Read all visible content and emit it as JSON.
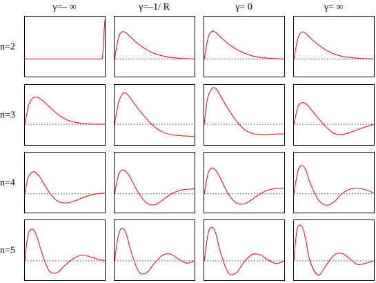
{
  "chart_data": {
    "type": "line",
    "columns": [
      "γ=– ∞",
      "γ=–1/ R",
      "γ= 0",
      "γ= ∞"
    ],
    "rows": [
      "n=2",
      "n=3",
      "n=4",
      "n=5"
    ],
    "grid": false,
    "colors": {
      "curve": "#e8141e",
      "baseline": "#404040",
      "frame": "#000000"
    },
    "panels": [
      [
        {
          "row": "n=2",
          "col": "γ=– ∞",
          "x": [
            0,
            0.2,
            0.4,
            0.6,
            0.8,
            0.9,
            0.95,
            0.97,
            0.98,
            0.99,
            1.0
          ],
          "y": [
            0,
            0,
            0,
            0,
            0,
            0,
            0,
            0.05,
            0.3,
            0.7,
            1.0
          ]
        },
        {
          "row": "n=2",
          "col": "γ=–1/ R",
          "x": [
            0,
            0.05,
            0.1,
            0.15,
            0.2,
            0.3,
            0.4,
            0.5,
            0.6,
            0.7,
            0.8,
            0.9,
            1.0
          ],
          "y": [
            0,
            0.55,
            0.7,
            0.66,
            0.56,
            0.38,
            0.24,
            0.14,
            0.08,
            0.04,
            0.02,
            0.01,
            0.0
          ]
        },
        {
          "row": "n=2",
          "col": "γ= 0",
          "x": [
            0,
            0.05,
            0.1,
            0.15,
            0.2,
            0.3,
            0.4,
            0.5,
            0.6,
            0.7,
            0.8,
            0.9,
            1.0
          ],
          "y": [
            0,
            0.55,
            0.71,
            0.67,
            0.57,
            0.39,
            0.25,
            0.15,
            0.08,
            0.04,
            0.02,
            0.01,
            0.0
          ]
        },
        {
          "row": "n=2",
          "col": "γ= ∞",
          "x": [
            0,
            0.05,
            0.1,
            0.15,
            0.2,
            0.3,
            0.4,
            0.5,
            0.6,
            0.7,
            0.8,
            0.9,
            1.0
          ],
          "y": [
            0,
            0.53,
            0.69,
            0.65,
            0.55,
            0.37,
            0.23,
            0.13,
            0.07,
            0.04,
            0.02,
            0.01,
            0.0
          ]
        }
      ],
      [
        {
          "row": "n=3",
          "col": "γ=– ∞",
          "x": [
            0,
            0.05,
            0.12,
            0.2,
            0.3,
            0.4,
            0.5,
            0.6,
            0.7,
            0.8,
            0.9,
            1.0
          ],
          "y": [
            0,
            0.55,
            0.75,
            0.7,
            0.5,
            0.3,
            0.15,
            0.07,
            0.03,
            0.01,
            0.0,
            0.0
          ]
        },
        {
          "row": "n=3",
          "col": "γ=–1/ R",
          "x": [
            0,
            0.05,
            0.1,
            0.15,
            0.2,
            0.3,
            0.4,
            0.5,
            0.6,
            0.7,
            0.8,
            0.9,
            1.0
          ],
          "y": [
            0,
            0.6,
            0.85,
            0.85,
            0.72,
            0.42,
            0.15,
            -0.05,
            -0.15,
            -0.2,
            -0.22,
            -0.23,
            -0.24
          ]
        },
        {
          "row": "n=3",
          "col": "γ= 0",
          "x": [
            0,
            0.04,
            0.1,
            0.15,
            0.2,
            0.3,
            0.4,
            0.5,
            0.6,
            0.7,
            0.8,
            0.9,
            1.0
          ],
          "y": [
            0,
            0.7,
            1.0,
            0.98,
            0.8,
            0.42,
            0.1,
            -0.1,
            -0.18,
            -0.2,
            -0.2,
            -0.19,
            -0.19
          ]
        },
        {
          "row": "n=3",
          "col": "γ= ∞",
          "x": [
            0,
            0.05,
            0.1,
            0.15,
            0.2,
            0.3,
            0.4,
            0.5,
            0.6,
            0.7,
            0.8,
            0.9,
            1.0
          ],
          "y": [
            0,
            0.48,
            0.6,
            0.57,
            0.45,
            0.18,
            -0.05,
            -0.18,
            -0.2,
            -0.16,
            -0.1,
            -0.05,
            0.0
          ]
        }
      ],
      [
        {
          "row": "n=4",
          "col": "γ=– ∞",
          "x": [
            0,
            0.04,
            0.1,
            0.15,
            0.2,
            0.3,
            0.4,
            0.5,
            0.6,
            0.7,
            0.8,
            0.9,
            1.0
          ],
          "y": [
            0,
            0.42,
            0.58,
            0.53,
            0.4,
            0.05,
            -0.15,
            -0.2,
            -0.17,
            -0.1,
            -0.04,
            0.0,
            0.02
          ]
        },
        {
          "row": "n=4",
          "col": "γ=–1/ R",
          "x": [
            0,
            0.05,
            0.1,
            0.15,
            0.2,
            0.3,
            0.4,
            0.5,
            0.6,
            0.7,
            0.8,
            0.9,
            1.0
          ],
          "y": [
            0,
            0.5,
            0.63,
            0.57,
            0.42,
            0.02,
            -0.2,
            -0.24,
            -0.14,
            -0.01,
            0.08,
            0.12,
            0.13
          ]
        },
        {
          "row": "n=4",
          "col": "γ= 0",
          "x": [
            0,
            0.05,
            0.1,
            0.15,
            0.2,
            0.3,
            0.4,
            0.5,
            0.6,
            0.7,
            0.8,
            0.9,
            1.0
          ],
          "y": [
            0,
            0.55,
            0.68,
            0.6,
            0.42,
            0.0,
            -0.2,
            -0.22,
            -0.12,
            0.0,
            0.1,
            0.14,
            0.15
          ]
        },
        {
          "row": "n=4",
          "col": "γ= ∞",
          "x": [
            0,
            0.05,
            0.1,
            0.15,
            0.2,
            0.3,
            0.4,
            0.5,
            0.6,
            0.7,
            0.8,
            0.9,
            1.0
          ],
          "y": [
            0,
            0.6,
            0.75,
            0.62,
            0.3,
            -0.12,
            -0.25,
            -0.18,
            0.0,
            0.12,
            0.15,
            0.1,
            0.02
          ]
        }
      ],
      [
        {
          "row": "n=5",
          "col": "γ=– ∞",
          "x": [
            0,
            0.04,
            0.1,
            0.15,
            0.2,
            0.3,
            0.4,
            0.5,
            0.6,
            0.7,
            0.8,
            0.9,
            1.0
          ],
          "y": [
            0,
            0.7,
            0.85,
            0.65,
            0.3,
            -0.2,
            -0.25,
            -0.1,
            0.05,
            0.15,
            0.12,
            0.05,
            0.0
          ]
        },
        {
          "row": "n=5",
          "col": "γ=–1/ R",
          "x": [
            0,
            0.05,
            0.1,
            0.15,
            0.2,
            0.3,
            0.4,
            0.5,
            0.6,
            0.7,
            0.8,
            0.9,
            1.0
          ],
          "y": [
            0,
            0.7,
            0.88,
            0.7,
            0.3,
            -0.22,
            -0.25,
            -0.05,
            0.15,
            0.18,
            0.05,
            -0.05,
            0.0
          ]
        },
        {
          "row": "n=5",
          "col": "γ= 0",
          "x": [
            0,
            0.05,
            0.1,
            0.15,
            0.2,
            0.3,
            0.4,
            0.5,
            0.6,
            0.7,
            0.8,
            0.9,
            1.0
          ],
          "y": [
            0,
            0.75,
            0.9,
            0.7,
            0.25,
            -0.25,
            -0.25,
            -0.02,
            0.17,
            0.16,
            0.02,
            -0.06,
            0.0
          ]
        },
        {
          "row": "n=5",
          "col": "γ= ∞",
          "x": [
            0,
            0.04,
            0.1,
            0.15,
            0.2,
            0.3,
            0.4,
            0.5,
            0.6,
            0.7,
            0.8,
            0.9,
            1.0
          ],
          "y": [
            0,
            0.85,
            0.92,
            0.55,
            0.0,
            -0.3,
            -0.1,
            0.15,
            0.2,
            0.05,
            -0.08,
            -0.05,
            0.0
          ]
        }
      ]
    ]
  }
}
